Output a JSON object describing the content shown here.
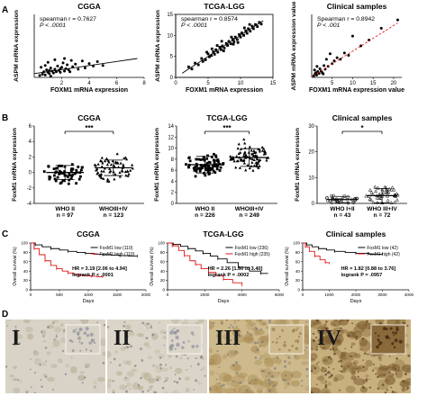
{
  "figure": {
    "panel_labels": [
      "A",
      "B",
      "C",
      "D"
    ],
    "row_a": [
      {
        "title": "CGGA",
        "stat_line1": "spearman r = 0.7627",
        "stat_line2": "P < .0001",
        "xlabel": "FOXM1 mRNA expression",
        "ylabel": "ASPM mRNA expression",
        "xticks": [
          "2",
          "4",
          "6",
          "8"
        ],
        "yticks": [],
        "xlim": [
          0,
          8
        ],
        "ylim": [
          0,
          10
        ],
        "fit_line": [
          [
            0,
            0.6
          ],
          [
            7.5,
            3.0
          ]
        ],
        "fit_style": "solid",
        "points": [
          [
            0.4,
            0.3
          ],
          [
            0.6,
            0.5
          ],
          [
            0.7,
            0.9
          ],
          [
            0.8,
            0.4
          ],
          [
            0.9,
            1.2
          ],
          [
            1.0,
            0.8
          ],
          [
            1.1,
            0.6
          ],
          [
            1.2,
            1.5
          ],
          [
            1.3,
            1.0
          ],
          [
            1.4,
            0.7
          ],
          [
            1.5,
            1.3
          ],
          [
            1.6,
            0.9
          ],
          [
            1.7,
            1.8
          ],
          [
            1.8,
            1.1
          ],
          [
            1.9,
            0.8
          ],
          [
            2.0,
            1.6
          ],
          [
            2.1,
            2.3
          ],
          [
            2.2,
            1.0
          ],
          [
            2.3,
            1.4
          ],
          [
            2.4,
            2.0
          ],
          [
            2.5,
            1.2
          ],
          [
            2.6,
            0.9
          ],
          [
            2.8,
            1.7
          ],
          [
            3.0,
            2.1
          ],
          [
            3.2,
            1.3
          ],
          [
            3.5,
            2.6
          ],
          [
            3.7,
            1.5
          ],
          [
            4.0,
            2.2
          ],
          [
            4.3,
            1.8
          ],
          [
            4.6,
            2.5
          ],
          [
            5.0,
            1.9
          ],
          [
            0.5,
            1.6
          ],
          [
            1.0,
            2.4
          ],
          [
            1.5,
            2.8
          ],
          [
            2.2,
            3.0
          ],
          [
            1.2,
            0.2
          ],
          [
            0.8,
            1.9
          ],
          [
            2.7,
            2.7
          ],
          [
            1.9,
            1.4
          ],
          [
            1.1,
            1.1
          ]
        ]
      },
      {
        "title": "TCGA-LGG",
        "stat_line1": "spearman r = 0.8574",
        "stat_line2": "P < .0001",
        "xlabel": "FOXM1 mRNA expression",
        "ylabel": "ASPM mRNA expression",
        "xticks": [
          "0",
          "5",
          "10",
          "15"
        ],
        "yticks": [
          "0",
          "5",
          "10",
          "15"
        ],
        "xlim": [
          0,
          15
        ],
        "ylim": [
          0,
          15
        ],
        "fit_line": [
          [
            1,
            1
          ],
          [
            13.5,
            13.5
          ]
        ],
        "fit_style": "solid",
        "points": [
          [
            2.0,
            2.5
          ],
          [
            2.5,
            2.0
          ],
          [
            3.0,
            3.4
          ],
          [
            3.5,
            3.0
          ],
          [
            4.0,
            4.5
          ],
          [
            4.2,
            3.8
          ],
          [
            4.6,
            4.2
          ],
          [
            5.0,
            5.6
          ],
          [
            5.2,
            4.9
          ],
          [
            5.5,
            5.2
          ],
          [
            5.8,
            6.1
          ],
          [
            6.0,
            5.5
          ],
          [
            6.2,
            6.6
          ],
          [
            6.5,
            6.0
          ],
          [
            6.8,
            7.2
          ],
          [
            7.0,
            6.6
          ],
          [
            7.2,
            7.5
          ],
          [
            7.5,
            7.0
          ],
          [
            7.8,
            8.1
          ],
          [
            8.0,
            7.6
          ],
          [
            8.2,
            8.6
          ],
          [
            8.5,
            8.0
          ],
          [
            8.8,
            9.1
          ],
          [
            9.0,
            8.5
          ],
          [
            9.2,
            9.6
          ],
          [
            9.5,
            9.0
          ],
          [
            9.8,
            10.2
          ],
          [
            10.0,
            9.6
          ],
          [
            10.2,
            10.6
          ],
          [
            10.5,
            10.0
          ],
          [
            10.8,
            11.1
          ],
          [
            11.0,
            10.5
          ],
          [
            11.2,
            11.6
          ],
          [
            11.5,
            11.0
          ],
          [
            11.8,
            12.2
          ],
          [
            12.0,
            11.6
          ],
          [
            12.3,
            12.6
          ],
          [
            12.6,
            12.1
          ],
          [
            12.9,
            13.1
          ],
          [
            13.2,
            12.7
          ],
          [
            6.4,
            7.6
          ],
          [
            7.4,
            6.3
          ],
          [
            8.6,
            9.6
          ],
          [
            9.6,
            8.3
          ],
          [
            10.6,
            11.8
          ],
          [
            5.6,
            6.8
          ],
          [
            7.1,
            8.6
          ],
          [
            8.9,
            7.9
          ],
          [
            11.4,
            12.6
          ],
          [
            4.8,
            6.0
          ]
        ]
      },
      {
        "title": "Clinical samples",
        "stat_line1": "Spearman r = 0.8942",
        "stat_line2": "P < .001",
        "xlabel": "FOXM1 mRNA expression value",
        "ylabel": "ASPM mRNA expression value",
        "xticks": [
          "5",
          "10",
          "15",
          "20"
        ],
        "yticks": [],
        "xlim": [
          0,
          22
        ],
        "ylim": [
          0,
          16
        ],
        "fit_line": [
          [
            0.5,
            0.5
          ],
          [
            21,
            13.8
          ]
        ],
        "fit_style": "dashed",
        "points": [
          [
            0.5,
            0.4
          ],
          [
            0.8,
            0.8
          ],
          [
            1.0,
            1.2
          ],
          [
            1.2,
            0.6
          ],
          [
            1.5,
            1.5
          ],
          [
            1.8,
            1.0
          ],
          [
            2.0,
            2.2
          ],
          [
            2.3,
            1.6
          ],
          [
            2.6,
            1.2
          ],
          [
            3.0,
            3.0
          ],
          [
            3.3,
            2.1
          ],
          [
            3.6,
            4.6
          ],
          [
            4.0,
            2.8
          ],
          [
            4.5,
            6.0
          ],
          [
            5.0,
            3.5
          ],
          [
            5.5,
            4.2
          ],
          [
            6.2,
            5.0
          ],
          [
            7.0,
            4.6
          ],
          [
            8.0,
            6.2
          ],
          [
            9.0,
            5.6
          ],
          [
            10.0,
            10.5
          ],
          [
            12.0,
            8.0
          ],
          [
            14.0,
            9.5
          ],
          [
            17.0,
            12.5
          ],
          [
            21.0,
            14.6
          ],
          [
            1.3,
            2.8
          ],
          [
            2.8,
            0.9
          ],
          [
            0.7,
            1.9
          ]
        ]
      }
    ],
    "row_b": [
      {
        "title": "CGGA",
        "ylabel": "FoxM1 mRNA expression",
        "yticks": [
          "-4",
          "-2",
          "0",
          "2",
          "4",
          "6"
        ],
        "ylim": [
          -4,
          6
        ],
        "groups": [
          {
            "label": "WHO II",
            "n_label": "n = 97",
            "mean": 0.0,
            "sd": 0.9,
            "marker": "square",
            "count": 60,
            "min": -2.0,
            "max": 1.8
          },
          {
            "label": "WHOIII+IV",
            "n_label": "n = 123",
            "mean": 0.6,
            "sd": 1.0,
            "marker": "triangle",
            "count": 70,
            "min": -1.6,
            "max": 2.9
          }
        ],
        "sig_label": "***"
      },
      {
        "title": "TCGA-LGG",
        "ylabel": "FoxM1 mRNA expression",
        "yticks": [
          "0",
          "2",
          "4",
          "6",
          "8",
          "10",
          "12",
          "14"
        ],
        "ylim": [
          0,
          14
        ],
        "groups": [
          {
            "label": "WHO II",
            "n_label": "n = 226",
            "mean": 7.0,
            "sd": 1.5,
            "marker": "square",
            "count": 85,
            "min": 3.2,
            "max": 10.8
          },
          {
            "label": "WHOIII+IV",
            "n_label": "n = 249",
            "mean": 8.3,
            "sd": 1.6,
            "marker": "triangle",
            "count": 90,
            "min": 4.4,
            "max": 12.2
          }
        ],
        "sig_label": "***"
      },
      {
        "title": "Clinical samples",
        "ylabel": "FoxM1 mRNA expression",
        "yticks": [
          "0",
          "10",
          "20",
          "30"
        ],
        "ylim": [
          0,
          30
        ],
        "groups": [
          {
            "label": "WHO I+II",
            "n_label": "n = 43",
            "mean": 1.5,
            "sd": 1.2,
            "marker": "circle",
            "count": 35,
            "min": 0.1,
            "max": 9.0
          },
          {
            "label": "WHO III+IV",
            "n_label": "n = 72",
            "mean": 3.0,
            "sd": 2.8,
            "marker": "triangle",
            "count": 45,
            "min": 0.1,
            "max": 21.0
          }
        ],
        "sig_label": "*"
      }
    ],
    "row_c": [
      {
        "title": "CGGA",
        "ylabel": "Overall survival (%)",
        "xlabel": "Days",
        "xticks": [
          "0",
          "500",
          "1000",
          "1500",
          "2000"
        ],
        "yticks": [
          "0",
          "20",
          "40",
          "60",
          "80",
          "100"
        ],
        "xlim": [
          0,
          2000
        ],
        "ylim": [
          0,
          100
        ],
        "legend": [
          {
            "name": "FoxM1 low (110)",
            "color": "#000000"
          },
          {
            "name": "FoxM1 high (110)",
            "color": "#e01414"
          }
        ],
        "hr_line1": "HR = 3.19 [2.06 to 4.94]",
        "hr_line2": "logrank P < .0001",
        "series": [
          {
            "name": "low",
            "color": "#000000",
            "x": [
              0,
              80,
              200,
              350,
              500,
              650,
              800,
              950,
              1100,
              1250,
              1400,
              1550,
              1700,
              1850
            ],
            "y": [
              100,
              96,
              92,
              88,
              85,
              82,
              80,
              78,
              76,
              75,
              74,
              73,
              72,
              72
            ]
          },
          {
            "name": "high",
            "color": "#e01414",
            "x": [
              0,
              60,
              150,
              250,
              350,
              450,
              550,
              650,
              750,
              850,
              950,
              1050,
              1150,
              1250
            ],
            "y": [
              100,
              88,
              75,
              62,
              52,
              45,
              40,
              36,
              33,
              31,
              30,
              29,
              28,
              28
            ]
          }
        ]
      },
      {
        "title": "TCGA-LGG",
        "ylabel": "Overall survival (%)",
        "xlabel": "Days",
        "xticks": [
          "0",
          "2000",
          "4000",
          "6000"
        ],
        "yticks": [
          "0",
          "20",
          "40",
          "60",
          "80",
          "100"
        ],
        "xlim": [
          0,
          6000
        ],
        "ylim": [
          0,
          100
        ],
        "legend": [
          {
            "name": "FoxM1 low (236)",
            "color": "#000000"
          },
          {
            "name": "FoxM1 high (235)",
            "color": "#e01414"
          }
        ],
        "hr_line1": "HR = 2.26 [1.50 to 3.40]",
        "hr_line2": "logrank P = .0002",
        "series": [
          {
            "name": "low",
            "color": "#000000",
            "x": [
              0,
              300,
              700,
              1100,
              1500,
              1900,
              2300,
              2700,
              3200,
              3800,
              4400,
              5000,
              5400
            ],
            "y": [
              100,
              97,
              93,
              88,
              83,
              78,
              72,
              66,
              58,
              48,
              40,
              35,
              35
            ]
          },
          {
            "name": "high",
            "color": "#e01414",
            "x": [
              0,
              250,
              600,
              900,
              1200,
              1500,
              1800,
              2200,
              2600,
              3000,
              3500,
              4000
            ],
            "y": [
              100,
              94,
              84,
              73,
              62,
              54,
              45,
              37,
              30,
              22,
              15,
              10
            ]
          }
        ]
      },
      {
        "title": "Clinical samples",
        "ylabel": "Overall survival (%)",
        "xlabel": "Days",
        "xticks": [
          "0",
          "1000",
          "2000",
          "3000",
          "4000"
        ],
        "yticks": [
          "0",
          "20",
          "40",
          "60",
          "80",
          "100"
        ],
        "xlim": [
          0,
          4000
        ],
        "ylim": [
          0,
          100
        ],
        "legend": [
          {
            "name": "FoxM1 low (42)",
            "color": "#000000"
          },
          {
            "name": "FoxM1 high (42)",
            "color": "#e01414"
          }
        ],
        "hr_line1": "HR = 1.82 [0.88 to 3.76]",
        "hr_line2": "logrank P = .0957",
        "series": [
          {
            "name": "low",
            "color": "#000000",
            "x": [
              0,
              150,
              350,
              600,
              900,
              1200,
              1600,
              2000,
              2500,
              3000
            ],
            "y": [
              100,
              96,
              92,
              88,
              85,
              82,
              80,
              78,
              76,
              76
            ]
          },
          {
            "name": "high",
            "color": "#e01414",
            "x": [
              0,
              100,
              250,
              450,
              650,
              850,
              1000
            ],
            "y": [
              100,
              92,
              82,
              72,
              64,
              58,
              55
            ]
          }
        ]
      }
    ],
    "row_d": [
      {
        "label": "I",
        "base": "#d8d3c6",
        "stain": "#b3a98f"
      },
      {
        "label": "II",
        "base": "#dad5c8",
        "stain": "#b8ad92"
      },
      {
        "label": "III",
        "base": "#cdb98c",
        "stain": "#a88a52"
      },
      {
        "label": "IV",
        "base": "#c8b07e",
        "stain": "#7b5a2c"
      }
    ]
  }
}
